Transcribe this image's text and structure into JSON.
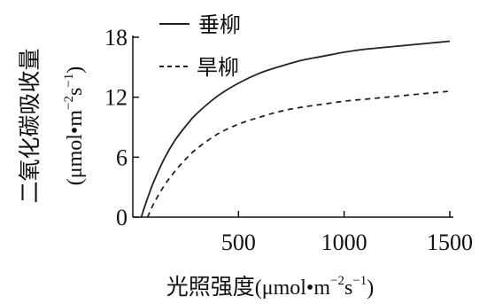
{
  "chart_data": {
    "type": "line",
    "x_label_text": "光照强度",
    "x_label_unit": "(μmol•m",
    "x_label_sup1": "−2",
    "x_label_mid": "s",
    "x_label_sup2": "−1",
    "x_label_close": ")",
    "y_label_text": "二氧化碳吸收量",
    "y_label_unit": "(μmol•m",
    "y_label_sup1": "−2",
    "y_label_mid": "s",
    "y_label_sup2": "−1",
    "y_label_close": ")",
    "xlim": [
      0,
      1500
    ],
    "ylim": [
      0,
      18
    ],
    "x_ticks": [
      "500",
      "1000",
      "1500"
    ],
    "y_ticks": [
      "0",
      "6",
      "12",
      "18"
    ],
    "y_tick_values": [
      0,
      6,
      12,
      18
    ],
    "x_tick_values": [
      500,
      1000,
      1500
    ],
    "series": [
      {
        "name": "垂柳",
        "style": "solid",
        "color": "#222222",
        "x": [
          40,
          60,
          80,
          100,
          150,
          200,
          250,
          300,
          400,
          500,
          600,
          700,
          800,
          900,
          1000,
          1100,
          1200,
          1300,
          1400,
          1500
        ],
        "values": [
          0.0,
          1.3,
          2.5,
          3.6,
          5.9,
          7.7,
          9.1,
          10.3,
          12.1,
          13.4,
          14.4,
          15.1,
          15.7,
          16.1,
          16.5,
          16.8,
          17.0,
          17.2,
          17.4,
          17.6
        ]
      },
      {
        "name": "旱柳",
        "style": "dashed",
        "color": "#222222",
        "x": [
          70,
          100,
          150,
          200,
          250,
          300,
          400,
          500,
          600,
          700,
          800,
          900,
          1000,
          1100,
          1200,
          1300,
          1400,
          1500
        ],
        "values": [
          0.0,
          1.4,
          3.2,
          4.6,
          5.8,
          6.8,
          8.3,
          9.3,
          10.0,
          10.6,
          11.0,
          11.3,
          11.6,
          11.8,
          12.0,
          12.2,
          12.4,
          12.6
        ]
      }
    ],
    "legend_position": "top-left",
    "grid": false
  }
}
